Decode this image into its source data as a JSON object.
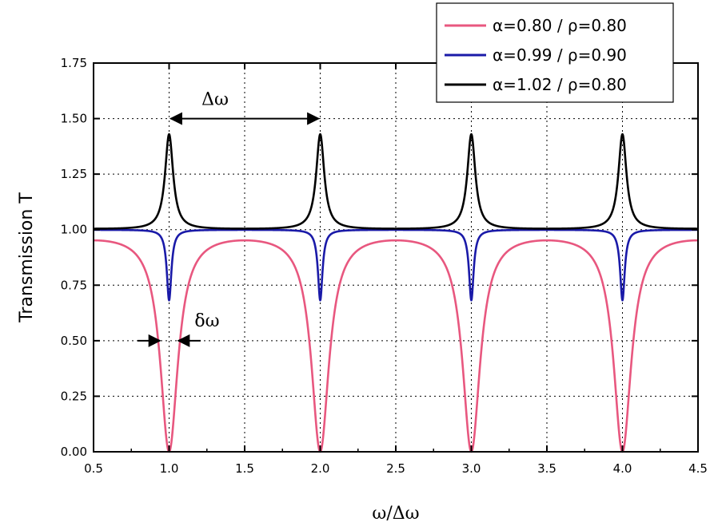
{
  "chart_data": {
    "type": "line",
    "xlabel": "ω/Δω",
    "ylabel": "Transmission T",
    "xlim": [
      0.5,
      4.5
    ],
    "ylim": [
      0.0,
      1.75
    ],
    "xticks": [
      "0.5",
      "1.0",
      "1.5",
      "2.0",
      "2.5",
      "3.0",
      "3.5",
      "4.0",
      "4.5"
    ],
    "yticks": [
      "0.00",
      "0.25",
      "0.50",
      "0.75",
      "1.00",
      "1.25",
      "1.50",
      "1.75"
    ],
    "grid": "dotted",
    "legend_position": "top-right",
    "resonances_at": [
      1.0,
      2.0,
      3.0,
      4.0
    ],
    "series": [
      {
        "name": "α=0.80 / ρ=0.80",
        "color": "#e8577f",
        "a": 0.8,
        "rho": 0.8,
        "min_T": 0.0,
        "max_T": 0.95,
        "x": [
          0.5,
          0.6,
          0.7,
          0.8,
          0.85,
          0.9,
          0.95,
          1.0,
          1.05,
          1.1,
          1.15,
          1.2,
          1.3,
          1.4,
          1.5,
          1.6,
          1.7,
          1.8,
          1.85,
          1.9,
          1.95,
          2.0,
          2.05,
          2.1,
          2.15,
          2.2,
          2.3,
          2.4,
          2.5,
          2.6,
          2.7,
          2.8,
          2.85,
          2.9,
          2.95,
          3.0,
          3.05,
          3.1,
          3.15,
          3.2,
          3.3,
          3.4,
          3.5,
          3.6,
          3.7,
          3.8,
          3.85,
          3.9,
          3.95,
          4.0,
          4.05,
          4.1,
          4.15,
          4.2,
          4.3,
          4.4,
          4.5
        ],
        "y": [
          0.95,
          0.94,
          0.92,
          0.85,
          0.78,
          0.63,
          0.31,
          0.0,
          0.31,
          0.63,
          0.78,
          0.85,
          0.92,
          0.94,
          0.95,
          0.94,
          0.92,
          0.85,
          0.78,
          0.63,
          0.31,
          0.0,
          0.31,
          0.63,
          0.78,
          0.85,
          0.92,
          0.94,
          0.95,
          0.94,
          0.92,
          0.85,
          0.78,
          0.63,
          0.31,
          0.0,
          0.31,
          0.63,
          0.78,
          0.85,
          0.92,
          0.94,
          0.95,
          0.94,
          0.92,
          0.85,
          0.78,
          0.63,
          0.31,
          0.0,
          0.31,
          0.63,
          0.78,
          0.85,
          0.92,
          0.94,
          0.95
        ]
      },
      {
        "name": "α=0.99 / ρ=0.90",
        "color": "#1a1aa8",
        "a": 0.99,
        "rho": 0.9,
        "min_T": 0.68,
        "max_T": 1.0,
        "x": [
          0.5,
          0.8,
          0.9,
          0.95,
          0.97,
          0.99,
          1.0,
          1.01,
          1.03,
          1.05,
          1.1,
          1.2,
          1.5,
          1.8,
          1.9,
          1.95,
          1.97,
          1.99,
          2.0,
          2.01,
          2.03,
          2.05,
          2.1,
          2.2,
          2.5,
          2.8,
          2.9,
          2.95,
          2.97,
          2.99,
          3.0,
          3.01,
          3.03,
          3.05,
          3.1,
          3.2,
          3.5,
          3.8,
          3.9,
          3.95,
          3.97,
          3.99,
          4.0,
          4.01,
          4.03,
          4.05,
          4.1,
          4.2,
          4.5
        ],
        "y": [
          1.0,
          1.0,
          0.99,
          0.98,
          0.96,
          0.82,
          0.68,
          0.82,
          0.96,
          0.98,
          0.99,
          1.0,
          1.0,
          1.0,
          0.99,
          0.98,
          0.96,
          0.82,
          0.68,
          0.82,
          0.96,
          0.98,
          0.99,
          1.0,
          1.0,
          1.0,
          0.99,
          0.98,
          0.96,
          0.82,
          0.68,
          0.82,
          0.96,
          0.98,
          0.99,
          1.0,
          1.0,
          1.0,
          0.99,
          0.98,
          0.96,
          0.82,
          0.68,
          0.82,
          0.96,
          0.98,
          0.99,
          1.0,
          1.0
        ]
      },
      {
        "name": "α=1.02 / ρ=0.80",
        "color": "#000000",
        "a": 1.02,
        "rho": 0.8,
        "min_T": 1.0,
        "max_T": 1.43,
        "x": [
          0.5,
          0.7,
          0.8,
          0.9,
          0.95,
          0.98,
          1.0,
          1.02,
          1.05,
          1.1,
          1.2,
          1.3,
          1.5,
          1.7,
          1.8,
          1.9,
          1.95,
          1.98,
          2.0,
          2.02,
          2.05,
          2.1,
          2.2,
          2.3,
          2.5,
          2.7,
          2.8,
          2.9,
          2.95,
          2.98,
          3.0,
          3.02,
          3.05,
          3.1,
          3.2,
          3.3,
          3.5,
          3.7,
          3.8,
          3.9,
          3.95,
          3.98,
          4.0,
          4.02,
          4.05,
          4.1,
          4.2,
          4.3,
          4.5
        ],
        "y": [
          1.0,
          1.0,
          1.01,
          1.03,
          1.08,
          1.25,
          1.43,
          1.25,
          1.08,
          1.03,
          1.01,
          1.0,
          1.0,
          1.0,
          1.01,
          1.03,
          1.08,
          1.25,
          1.43,
          1.25,
          1.08,
          1.03,
          1.01,
          1.0,
          1.0,
          1.0,
          1.01,
          1.03,
          1.08,
          1.25,
          1.43,
          1.25,
          1.08,
          1.03,
          1.01,
          1.0,
          1.0,
          1.0,
          1.01,
          1.03,
          1.08,
          1.25,
          1.43,
          1.25,
          1.08,
          1.03,
          1.01,
          1.0,
          1.0
        ]
      }
    ],
    "annotations": [
      {
        "label": "Δω",
        "kind": "double-arrow",
        "from": [
          1.0,
          1.5
        ],
        "to": [
          2.0,
          1.5
        ]
      },
      {
        "label": "δω",
        "kind": "inward-arrows",
        "from": [
          0.95,
          0.5
        ],
        "to": [
          1.05,
          0.5
        ]
      }
    ]
  }
}
